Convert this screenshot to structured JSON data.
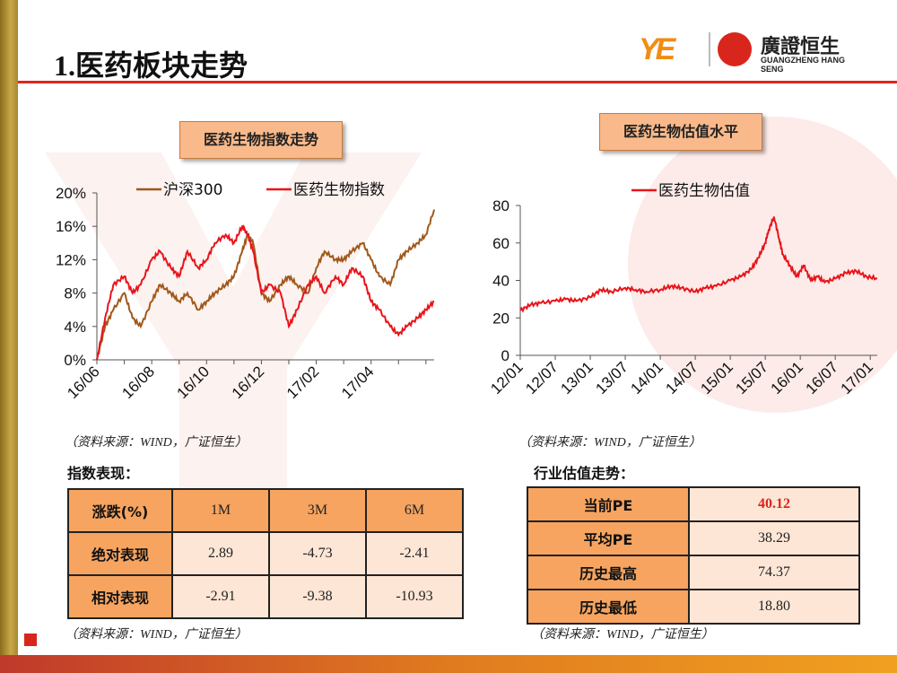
{
  "header": {
    "title": "1.医药板块走势",
    "logo_text_cn": "廣證恒生",
    "logo_text_en": "GUANGZHENG HANG SENG",
    "logo_mark": "YE"
  },
  "left_chart_title": "医药生物指数走势",
  "right_chart_title": "医药生物估值水平",
  "source_label": "（资料来源：WIND，广证恒生）",
  "perf_section": "指数表现：",
  "valuation_section": "行业估值走势：",
  "perf_table": {
    "header": [
      "涨跌(%)",
      "1M",
      "3M",
      "6M"
    ],
    "rows": [
      {
        "label": "绝对表现",
        "values": [
          "2.89",
          "-4.73",
          "-2.41"
        ]
      },
      {
        "label": "相对表现",
        "values": [
          "-2.91",
          "-9.38",
          "-10.93"
        ]
      }
    ]
  },
  "pe_table": {
    "rows": [
      {
        "label": "当前PE",
        "value": "40.12"
      },
      {
        "label": "平均PE",
        "value": "38.29"
      },
      {
        "label": "历史最高",
        "value": "74.37"
      },
      {
        "label": "历史最低",
        "value": "18.80"
      }
    ]
  },
  "colors": {
    "hs300": "#a0581a",
    "pharma": "#e8141a",
    "accent_red": "#e0261d",
    "header_orange": "#f6a460"
  },
  "chart_data": [
    {
      "type": "line",
      "title": "医药生物指数走势",
      "x_tick_labels": [
        "16/06",
        "16/08",
        "16/10",
        "16/12",
        "17/02",
        "17/04"
      ],
      "x_tick_positions": [
        0,
        2,
        4,
        6,
        8,
        10
      ],
      "xlim": [
        0,
        12.3
      ],
      "ylim": [
        0,
        20
      ],
      "y_ticks": [
        "0%",
        "4%",
        "8%",
        "12%",
        "16%",
        "20%"
      ],
      "legend_position": "top",
      "series": [
        {
          "name": "沪深300",
          "color": "#a0581a",
          "x": [
            0,
            0.3,
            0.6,
            1.0,
            1.3,
            1.6,
            2.0,
            2.3,
            2.7,
            3.0,
            3.3,
            3.7,
            4.0,
            4.3,
            4.7,
            5.0,
            5.3,
            5.5,
            5.7,
            6.0,
            6.3,
            6.7,
            7.0,
            7.3,
            7.7,
            8.0,
            8.3,
            8.7,
            9.0,
            9.3,
            9.7,
            10.0,
            10.3,
            10.7,
            11.0,
            11.3,
            11.7,
            12.0,
            12.3
          ],
          "values": [
            0,
            4,
            6,
            8,
            5,
            4,
            7,
            9,
            8,
            7,
            8,
            6,
            7,
            8,
            9,
            10,
            13,
            15,
            14,
            8,
            7,
            9,
            10,
            9,
            8,
            11,
            13,
            12,
            12,
            13,
            14,
            12,
            10,
            9,
            12,
            13,
            14,
            15,
            18
          ]
        },
        {
          "name": "医药生物指数",
          "color": "#e8141a",
          "x": [
            0,
            0.3,
            0.6,
            1.0,
            1.3,
            1.6,
            2.0,
            2.3,
            2.7,
            3.0,
            3.3,
            3.7,
            4.0,
            4.3,
            4.7,
            5.0,
            5.3,
            5.5,
            5.7,
            6.0,
            6.3,
            6.7,
            7.0,
            7.3,
            7.7,
            8.0,
            8.3,
            8.7,
            9.0,
            9.3,
            9.7,
            10.0,
            10.3,
            10.7,
            11.0,
            11.3,
            11.7,
            12.0,
            12.3
          ],
          "values": [
            0,
            5,
            9,
            10,
            8,
            9,
            12,
            13,
            11,
            10,
            13,
            11,
            12,
            14,
            15,
            14,
            16,
            15,
            13,
            8,
            9,
            8,
            4,
            6,
            9,
            10,
            8,
            10,
            9,
            11,
            10,
            7,
            6,
            4,
            3,
            4,
            5,
            6,
            7
          ]
        }
      ]
    },
    {
      "type": "line",
      "title": "医药生物估值水平",
      "x_tick_labels": [
        "12/01",
        "12/07",
        "13/01",
        "13/07",
        "14/01",
        "14/07",
        "15/01",
        "15/07",
        "16/01",
        "16/07",
        "17/01"
      ],
      "x_tick_positions": [
        0,
        1,
        2,
        3,
        4,
        5,
        6,
        7,
        8,
        9,
        10
      ],
      "xlim": [
        0,
        10.2
      ],
      "ylim": [
        0,
        80
      ],
      "y_ticks": [
        "0",
        "20",
        "40",
        "60",
        "80"
      ],
      "legend_position": "top",
      "series": [
        {
          "name": "医药生物估值",
          "color": "#e8141a",
          "x": [
            0,
            0.3,
            0.6,
            1.0,
            1.3,
            1.6,
            2.0,
            2.3,
            2.6,
            3.0,
            3.3,
            3.6,
            4.0,
            4.3,
            4.6,
            5.0,
            5.3,
            5.6,
            6.0,
            6.3,
            6.6,
            6.8,
            7.0,
            7.1,
            7.25,
            7.4,
            7.5,
            7.7,
            7.9,
            8.1,
            8.3,
            8.5,
            8.7,
            9.0,
            9.3,
            9.6,
            9.9,
            10.2
          ],
          "values": [
            24,
            27,
            28,
            29,
            30,
            29,
            31,
            35,
            34,
            36,
            35,
            34,
            35,
            37,
            36,
            34,
            36,
            37,
            40,
            42,
            46,
            52,
            60,
            67,
            74,
            62,
            54,
            48,
            42,
            48,
            40,
            42,
            39,
            41,
            44,
            45,
            42,
            41
          ]
        }
      ]
    }
  ]
}
